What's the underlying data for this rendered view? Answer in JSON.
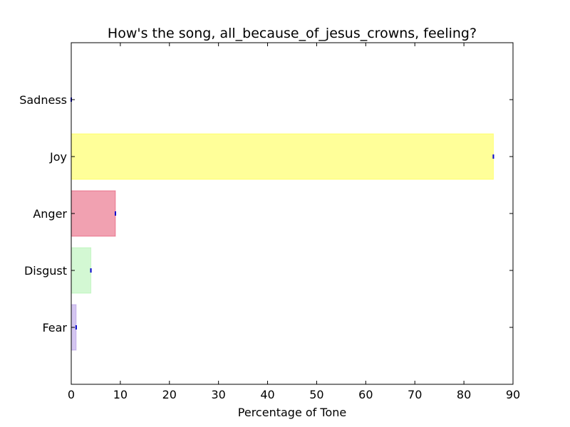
{
  "chart_data": {
    "type": "bar",
    "orientation": "horizontal",
    "title": "How's the song, all_because_of_jesus_crowns, feeling?",
    "xlabel": "Percentage of Tone",
    "ylabel": "",
    "categories": [
      "Fear",
      "Disgust",
      "Anger",
      "Joy",
      "Sadness"
    ],
    "values": [
      1,
      4,
      9,
      86,
      0
    ],
    "colors": [
      "#9370DB",
      "#90EE90",
      "#DC143C",
      "#FFFF00",
      "#0000FF"
    ],
    "xlim": [
      0,
      90
    ],
    "xticks": [
      0,
      10,
      20,
      30,
      40,
      50,
      60,
      70,
      80,
      90
    ],
    "grid": false,
    "legend": "none"
  }
}
